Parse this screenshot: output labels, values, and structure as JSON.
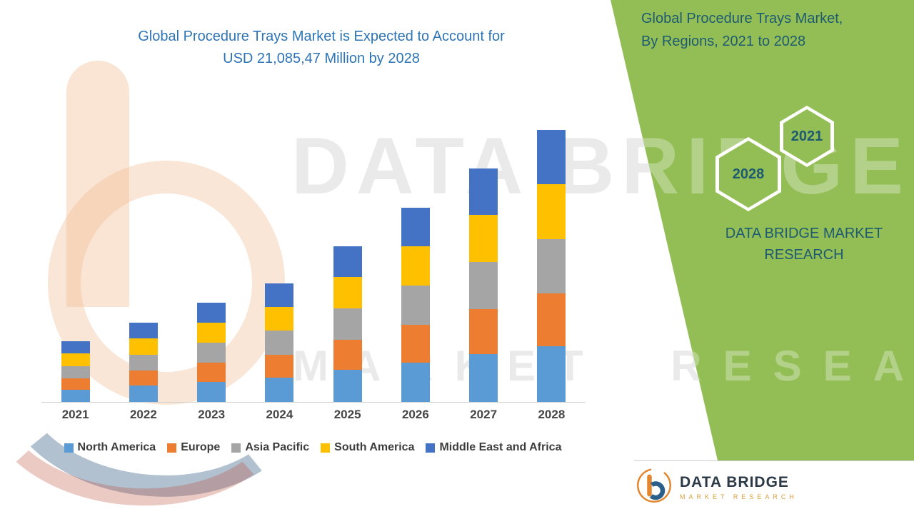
{
  "header": {
    "main_title_line1": "Global Procedure Trays Market is Expected to Account for",
    "main_title_line2": "USD 21,085,47 Million by 2028"
  },
  "right_panel": {
    "title_line1": "Global Procedure Trays Market,",
    "title_line2": "By Regions, 2021 to 2028",
    "hexagon_back_label": "2021",
    "hexagon_front_label": "2028",
    "brand_line1": "DATA BRIDGE MARKET",
    "brand_line2": "RESEARCH"
  },
  "watermark": {
    "line1": "DATA BRIDGE",
    "line2": "MARKET RESEARCH"
  },
  "footer": {
    "logo_title": "DATA BRIDGE",
    "logo_subtitle": "MARKET RESEARCH"
  },
  "colors": {
    "green_panel": "#92be55",
    "title_blue": "#2e74b5",
    "panel_text": "#1e5b70",
    "north_america": "#5b9bd5",
    "europe": "#ed7d31",
    "asia_pacific": "#a5a5a5",
    "south_america": "#ffc000",
    "middle_east_africa": "#4472c4"
  },
  "chart_data": {
    "type": "bar",
    "stacked": true,
    "title": "Global Procedure Trays Market is Expected to Account for USD 21,085,47 Million by 2028",
    "unit": "USD Million",
    "categories": [
      "2021",
      "2022",
      "2023",
      "2024",
      "2025",
      "2026",
      "2027",
      "2028"
    ],
    "series": [
      {
        "name": "North America",
        "color": "#5b9bd5",
        "values": [
          960,
          1260,
          1570,
          1880,
          2470,
          3070,
          3690,
          4300
        ]
      },
      {
        "name": "Europe",
        "color": "#ed7d31",
        "values": [
          900,
          1200,
          1500,
          1800,
          2360,
          2940,
          3540,
          4120
        ]
      },
      {
        "name": "Asia Pacific",
        "color": "#a5a5a5",
        "values": [
          920,
          1220,
          1530,
          1840,
          2420,
          3000,
          3610,
          4210
        ]
      },
      {
        "name": "South America",
        "color": "#ffc000",
        "values": [
          980,
          1280,
          1570,
          1880,
          2450,
          3050,
          3660,
          4260
        ]
      },
      {
        "name": "Middle East and Africa",
        "color": "#4472c4",
        "values": [
          940,
          1220,
          1530,
          1830,
          2400,
          2990,
          3600,
          4195
        ]
      }
    ],
    "totals": [
      4700,
      6180,
      7700,
      9230,
      12100,
      15050,
      18100,
      21085
    ],
    "ylim": [
      0,
      21500
    ],
    "legend_position": "bottom",
    "grid": false,
    "xlabel": "",
    "ylabel": ""
  }
}
